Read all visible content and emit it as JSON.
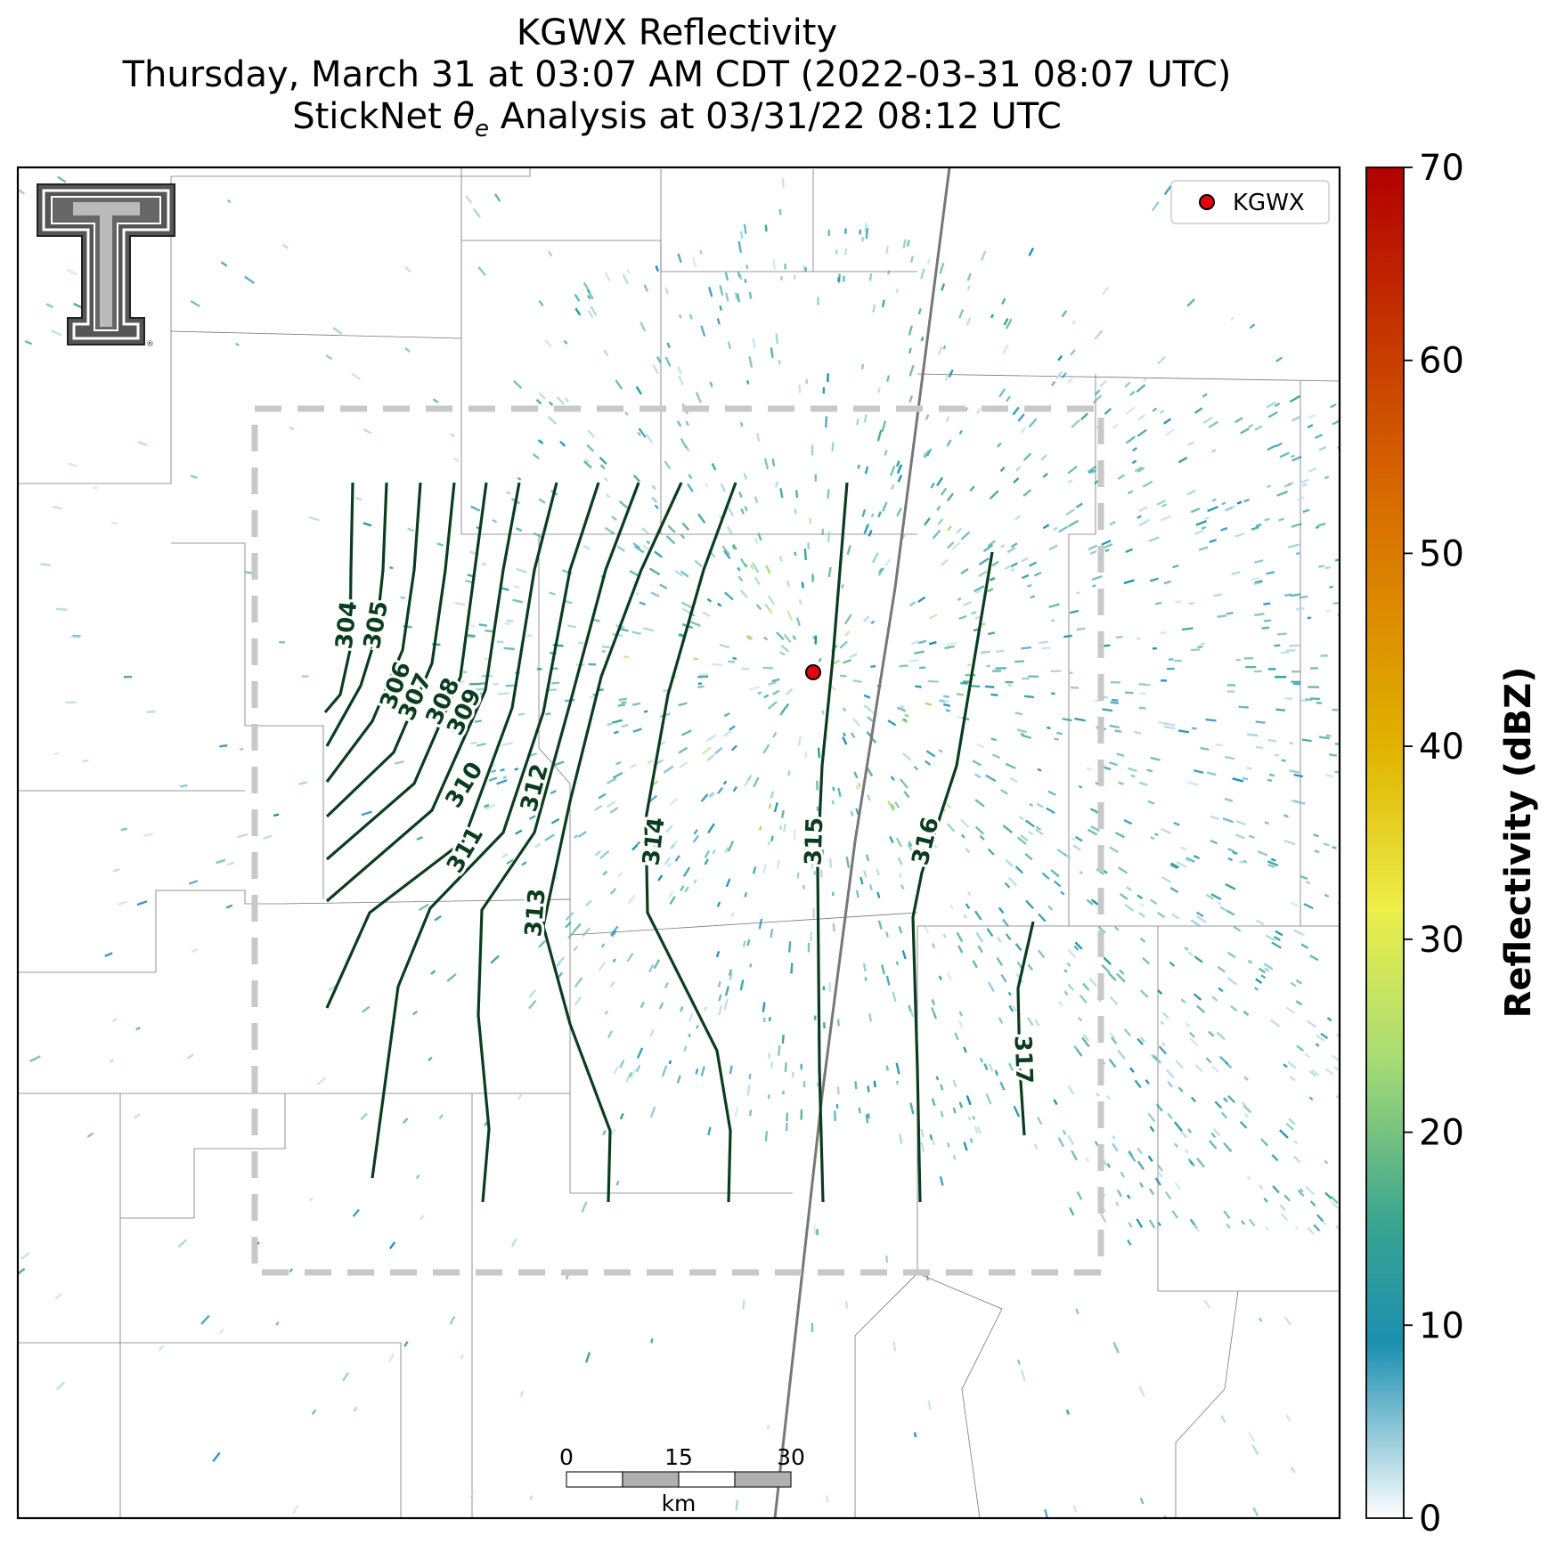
{
  "title": {
    "line1": "KGWX Reflectivity",
    "line2": "Thursday, March 31 at 03:07 AM CDT (2022-03-31 08:07 UTC)",
    "line3_prefix": "StickNet ",
    "line3_theta": "θ",
    "line3_sub": "e",
    "line3_suffix": " Analysis at 03/31/22 08:12 UTC"
  },
  "legend": {
    "label": "KGWX",
    "marker_color": "#e3000f"
  },
  "radar_site": {
    "name": "KGWX"
  },
  "colorbar": {
    "label": "Reflectivity (dBZ)",
    "min": 0,
    "max": 70,
    "ticks": [
      "0",
      "10",
      "20",
      "30",
      "40",
      "50",
      "60",
      "70"
    ],
    "stops": [
      "#ffffff",
      "#1b8fb0",
      "#3aa58f",
      "#a8dc74",
      "#ecef49",
      "#e0b300",
      "#d86d00",
      "#b20000"
    ]
  },
  "contours": {
    "variable": "theta-e",
    "line_color": "#0a3d1e",
    "labels": [
      "304",
      "305",
      "306",
      "307",
      "308",
      "309",
      "310",
      "311",
      "312",
      "313",
      "314",
      "315",
      "316",
      "317"
    ]
  },
  "scalebar": {
    "ticks": [
      "0",
      "15",
      "30"
    ],
    "unit": "km"
  },
  "logo": {
    "name": "Texas Tech Double T",
    "mark": "®"
  }
}
